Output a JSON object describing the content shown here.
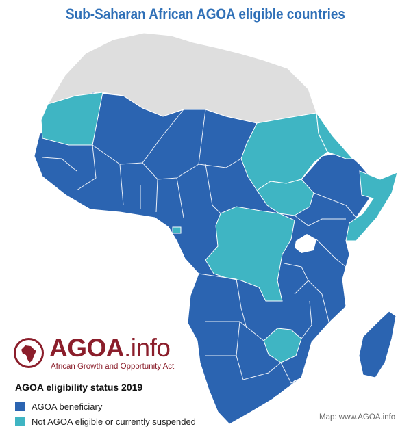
{
  "title": "Sub-Saharan African AGOA eligible countries",
  "brand": {
    "name": "AGOA",
    "suffix": ".info",
    "tagline": "African Growth and Opportunity Act"
  },
  "legend": {
    "title": "AGOA eligibility status 2019",
    "items": [
      {
        "label": "AGOA beneficiary",
        "color": "#2b64b1"
      },
      {
        "label": "Not AGOA eligible or currently suspended",
        "color": "#3fb5c3"
      }
    ]
  },
  "credit": "Map: www.AGOA.info",
  "colors": {
    "beneficiary": "#2b64b1",
    "not_eligible": "#3fb5c3",
    "non_ssa": "#dedede",
    "border": "#ffffff",
    "brand": "#8b1e2b"
  }
}
